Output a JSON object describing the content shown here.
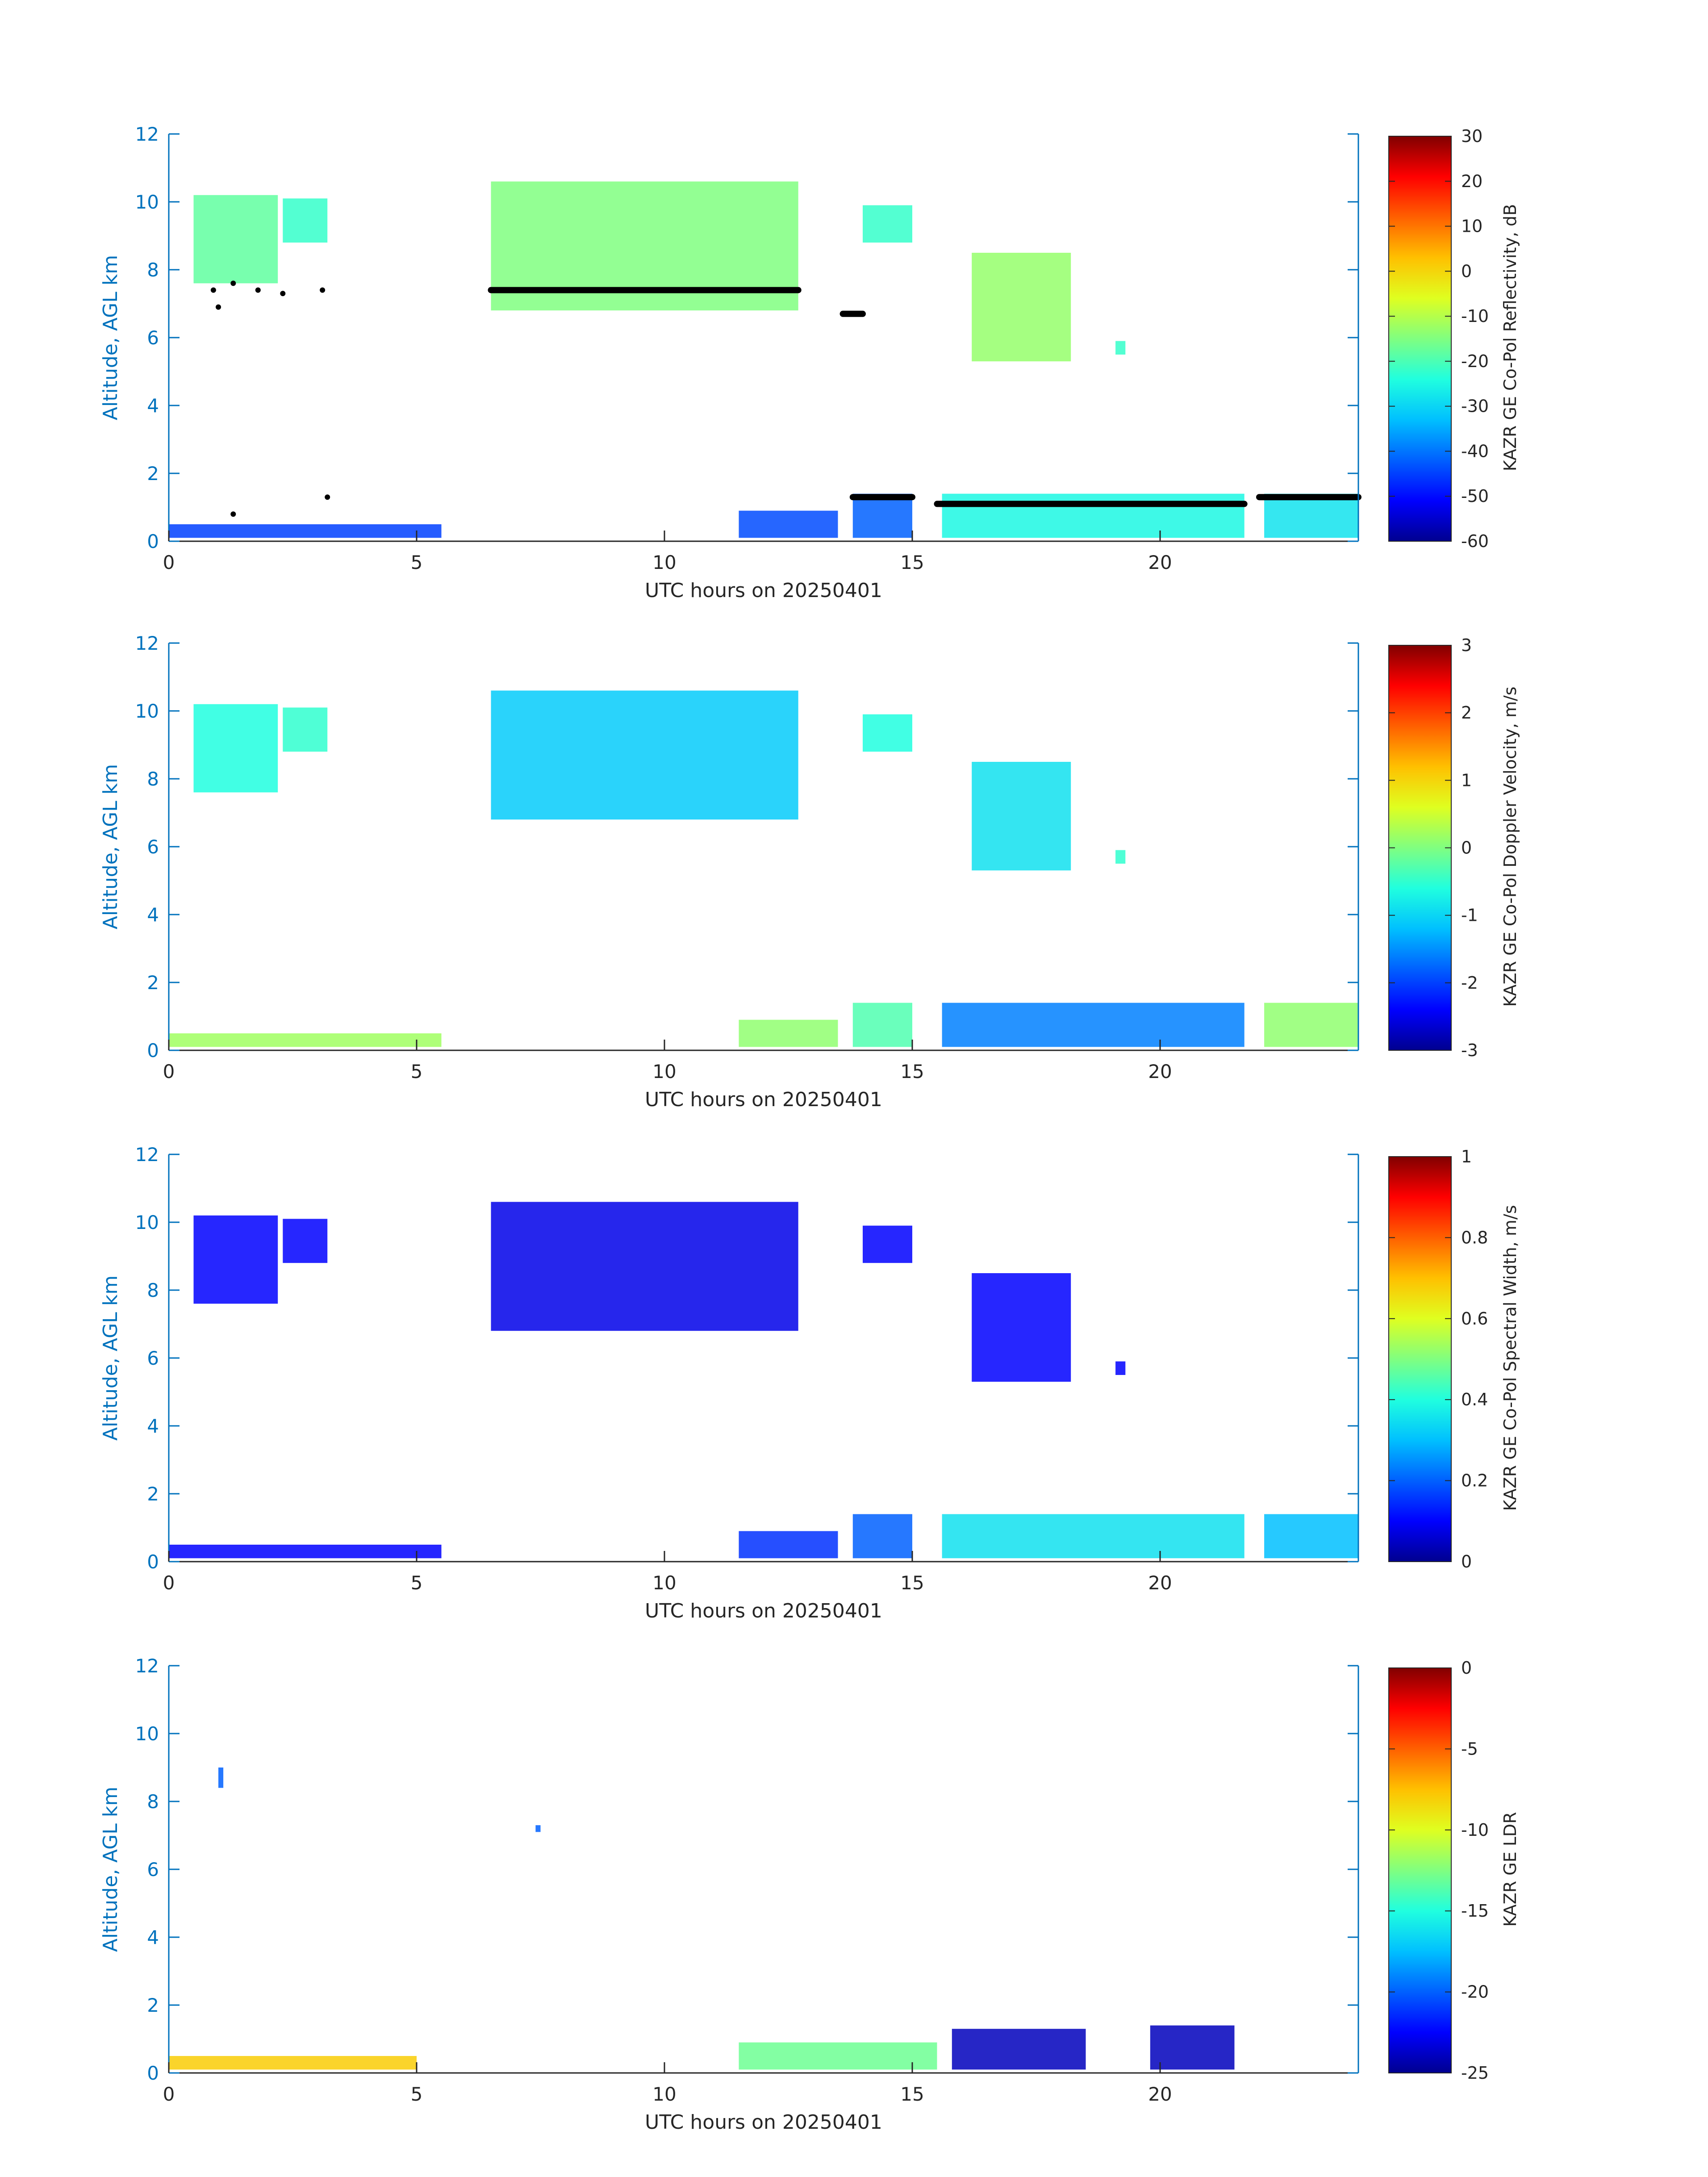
{
  "colorscale": [
    "#00008f",
    "#0000ff",
    "#0060ff",
    "#00c0ff",
    "#20ffdf",
    "#80ff80",
    "#dfff20",
    "#ffc000",
    "#ff6000",
    "#ff0000",
    "#800000"
  ],
  "colors": {
    "axis_y": "#0072bd",
    "axis_x": "#262626",
    "cloud_top_marker": "#000000"
  },
  "chart_data": [
    {
      "type": "heatmap",
      "title": "",
      "xlabel": "UTC hours on 20250401",
      "ylabel": "Altitude, AGL km",
      "xlim": [
        0,
        24
      ],
      "ylim": [
        0,
        12
      ],
      "x_ticks": [
        "0",
        "5",
        "10",
        "15",
        "20"
      ],
      "y_ticks": [
        "0",
        "2",
        "4",
        "6",
        "8",
        "10",
        "12"
      ],
      "colorbar": {
        "label": "KAZR GE Co-Pol Reflectivity, dB",
        "min": -60,
        "max": 30,
        "ticks": [
          "-60",
          "-50",
          "-40",
          "-30",
          "-20",
          "-10",
          "0",
          "10",
          "20",
          "30"
        ]
      },
      "cloud_regions": [
        {
          "x": [
            0.5,
            2.2
          ],
          "y": [
            7.6,
            10.2
          ],
          "value": -18
        },
        {
          "x": [
            2.3,
            3.2
          ],
          "y": [
            8.8,
            10.1
          ],
          "value": -22
        },
        {
          "x": [
            6.5,
            12.7
          ],
          "y": [
            6.8,
            10.6
          ],
          "value": -15
        },
        {
          "x": [
            14.0,
            15.0
          ],
          "y": [
            8.8,
            9.9
          ],
          "value": -22
        },
        {
          "x": [
            16.2,
            18.2
          ],
          "y": [
            5.3,
            8.5
          ],
          "value": -13
        },
        {
          "x": [
            19.1,
            19.3
          ],
          "y": [
            5.5,
            5.9
          ],
          "value": -22
        },
        {
          "x": [
            0.0,
            5.5
          ],
          "y": [
            0.1,
            0.5
          ],
          "value": -45
        },
        {
          "x": [
            11.5,
            13.5
          ],
          "y": [
            0.1,
            0.9
          ],
          "value": -44
        },
        {
          "x": [
            13.8,
            15.0
          ],
          "y": [
            0.1,
            1.4
          ],
          "value": -42
        },
        {
          "x": [
            15.6,
            21.7
          ],
          "y": [
            0.1,
            1.4
          ],
          "value": -25
        },
        {
          "x": [
            22.1,
            24.0
          ],
          "y": [
            0.1,
            1.4
          ],
          "value": -28
        }
      ],
      "marker_segments": [
        {
          "x": [
            6.5,
            12.7
          ],
          "y": 7.4
        },
        {
          "x": [
            13.6,
            14.0
          ],
          "y": 6.7
        },
        {
          "x": [
            13.8,
            15.0
          ],
          "y": 1.3
        },
        {
          "x": [
            15.5,
            21.7
          ],
          "y": 1.1
        },
        {
          "x": [
            22.0,
            24.0
          ],
          "y": 1.3
        }
      ],
      "marker_points": [
        {
          "x": 0.9,
          "y": 7.4
        },
        {
          "x": 1.3,
          "y": 7.6
        },
        {
          "x": 1.8,
          "y": 7.4
        },
        {
          "x": 2.3,
          "y": 7.3
        },
        {
          "x": 3.1,
          "y": 7.4
        },
        {
          "x": 1.0,
          "y": 6.9
        },
        {
          "x": 3.2,
          "y": 1.3
        },
        {
          "x": 1.3,
          "y": 0.8
        }
      ]
    },
    {
      "type": "heatmap",
      "title": "",
      "xlabel": "UTC hours on 20250401",
      "ylabel": "Altitude, AGL km",
      "xlim": [
        0,
        24
      ],
      "ylim": [
        0,
        12
      ],
      "x_ticks": [
        "0",
        "5",
        "10",
        "15",
        "20"
      ],
      "y_ticks": [
        "0",
        "2",
        "4",
        "6",
        "8",
        "10",
        "12"
      ],
      "colorbar": {
        "label": "KAZR GE Co-Pol Doppler Velocity, m/s",
        "min": -3,
        "max": 3,
        "ticks": [
          "-3",
          "-2",
          "-1",
          "0",
          "1",
          "2",
          "3"
        ]
      },
      "cloud_regions": [
        {
          "x": [
            0.5,
            2.2
          ],
          "y": [
            7.6,
            10.2
          ],
          "value": -0.6
        },
        {
          "x": [
            2.3,
            3.2
          ],
          "y": [
            8.8,
            10.1
          ],
          "value": -0.5
        },
        {
          "x": [
            6.5,
            12.7
          ],
          "y": [
            6.8,
            10.6
          ],
          "value": -1.1
        },
        {
          "x": [
            14.0,
            15.0
          ],
          "y": [
            8.8,
            9.9
          ],
          "value": -0.6
        },
        {
          "x": [
            16.2,
            18.2
          ],
          "y": [
            5.3,
            8.5
          ],
          "value": -0.9
        },
        {
          "x": [
            19.1,
            19.3
          ],
          "y": [
            5.5,
            5.9
          ],
          "value": -0.5
        },
        {
          "x": [
            0.0,
            5.5
          ],
          "y": [
            0.1,
            0.5
          ],
          "value": 0.2
        },
        {
          "x": [
            11.5,
            13.5
          ],
          "y": [
            0.1,
            0.9
          ],
          "value": 0.1
        },
        {
          "x": [
            13.8,
            15.0
          ],
          "y": [
            0.1,
            1.4
          ],
          "value": -0.3
        },
        {
          "x": [
            15.6,
            21.7
          ],
          "y": [
            0.1,
            1.4
          ],
          "value": -1.6
        },
        {
          "x": [
            22.1,
            24.0
          ],
          "y": [
            0.1,
            1.4
          ],
          "value": 0.1
        }
      ]
    },
    {
      "type": "heatmap",
      "title": "",
      "xlabel": "UTC hours on 20250401",
      "ylabel": "Altitude, AGL km",
      "xlim": [
        0,
        24
      ],
      "ylim": [
        0,
        12
      ],
      "x_ticks": [
        "0",
        "5",
        "10",
        "15",
        "20"
      ],
      "y_ticks": [
        "0",
        "2",
        "4",
        "6",
        "8",
        "10",
        "12"
      ],
      "colorbar": {
        "label": "KAZR GE Co-Pol Spectral Width, m/s",
        "min": 0,
        "max": 1,
        "ticks": [
          "0",
          "0.2",
          "0.4",
          "0.6",
          "0.8",
          "1"
        ]
      },
      "cloud_regions": [
        {
          "x": [
            0.5,
            2.2
          ],
          "y": [
            7.6,
            10.2
          ],
          "value": 0.1
        },
        {
          "x": [
            2.3,
            3.2
          ],
          "y": [
            8.8,
            10.1
          ],
          "value": 0.1
        },
        {
          "x": [
            6.5,
            12.7
          ],
          "y": [
            6.8,
            10.6
          ],
          "value": 0.08
        },
        {
          "x": [
            14.0,
            15.0
          ],
          "y": [
            8.8,
            9.9
          ],
          "value": 0.1
        },
        {
          "x": [
            16.2,
            18.2
          ],
          "y": [
            5.3,
            8.5
          ],
          "value": 0.1
        },
        {
          "x": [
            19.1,
            19.3
          ],
          "y": [
            5.5,
            5.9
          ],
          "value": 0.1
        },
        {
          "x": [
            0.0,
            5.5
          ],
          "y": [
            0.1,
            0.5
          ],
          "value": 0.1
        },
        {
          "x": [
            11.5,
            13.5
          ],
          "y": [
            0.1,
            0.9
          ],
          "value": 0.15
        },
        {
          "x": [
            13.8,
            15.0
          ],
          "y": [
            0.1,
            1.4
          ],
          "value": 0.2
        },
        {
          "x": [
            15.6,
            21.7
          ],
          "y": [
            0.1,
            1.4
          ],
          "value": 0.35
        },
        {
          "x": [
            22.1,
            24.0
          ],
          "y": [
            0.1,
            1.4
          ],
          "value": 0.3
        }
      ]
    },
    {
      "type": "heatmap",
      "title": "",
      "xlabel": "UTC hours on 20250401",
      "ylabel": "Altitude, AGL km",
      "xlim": [
        0,
        24
      ],
      "ylim": [
        0,
        12
      ],
      "x_ticks": [
        "0",
        "5",
        "10",
        "15",
        "20"
      ],
      "y_ticks": [
        "0",
        "2",
        "4",
        "6",
        "8",
        "10",
        "12"
      ],
      "colorbar": {
        "label": "KAZR GE LDR",
        "min": -25,
        "max": 0,
        "ticks": [
          "-25",
          "-20",
          "-15",
          "-10",
          "-5",
          "0"
        ]
      },
      "cloud_regions": [
        {
          "x": [
            1.0,
            1.1
          ],
          "y": [
            8.4,
            9.0
          ],
          "value": -20
        },
        {
          "x": [
            7.4,
            7.5
          ],
          "y": [
            7.1,
            7.3
          ],
          "value": -20
        },
        {
          "x": [
            0.0,
            5.0
          ],
          "y": [
            0.1,
            0.5
          ],
          "value": -8
        },
        {
          "x": [
            11.5,
            15.5
          ],
          "y": [
            0.1,
            0.9
          ],
          "value": -13
        },
        {
          "x": [
            15.8,
            18.5
          ],
          "y": [
            0.1,
            1.3
          ],
          "value": -24
        },
        {
          "x": [
            19.8,
            21.5
          ],
          "y": [
            0.1,
            1.4
          ],
          "value": -24
        }
      ]
    }
  ]
}
